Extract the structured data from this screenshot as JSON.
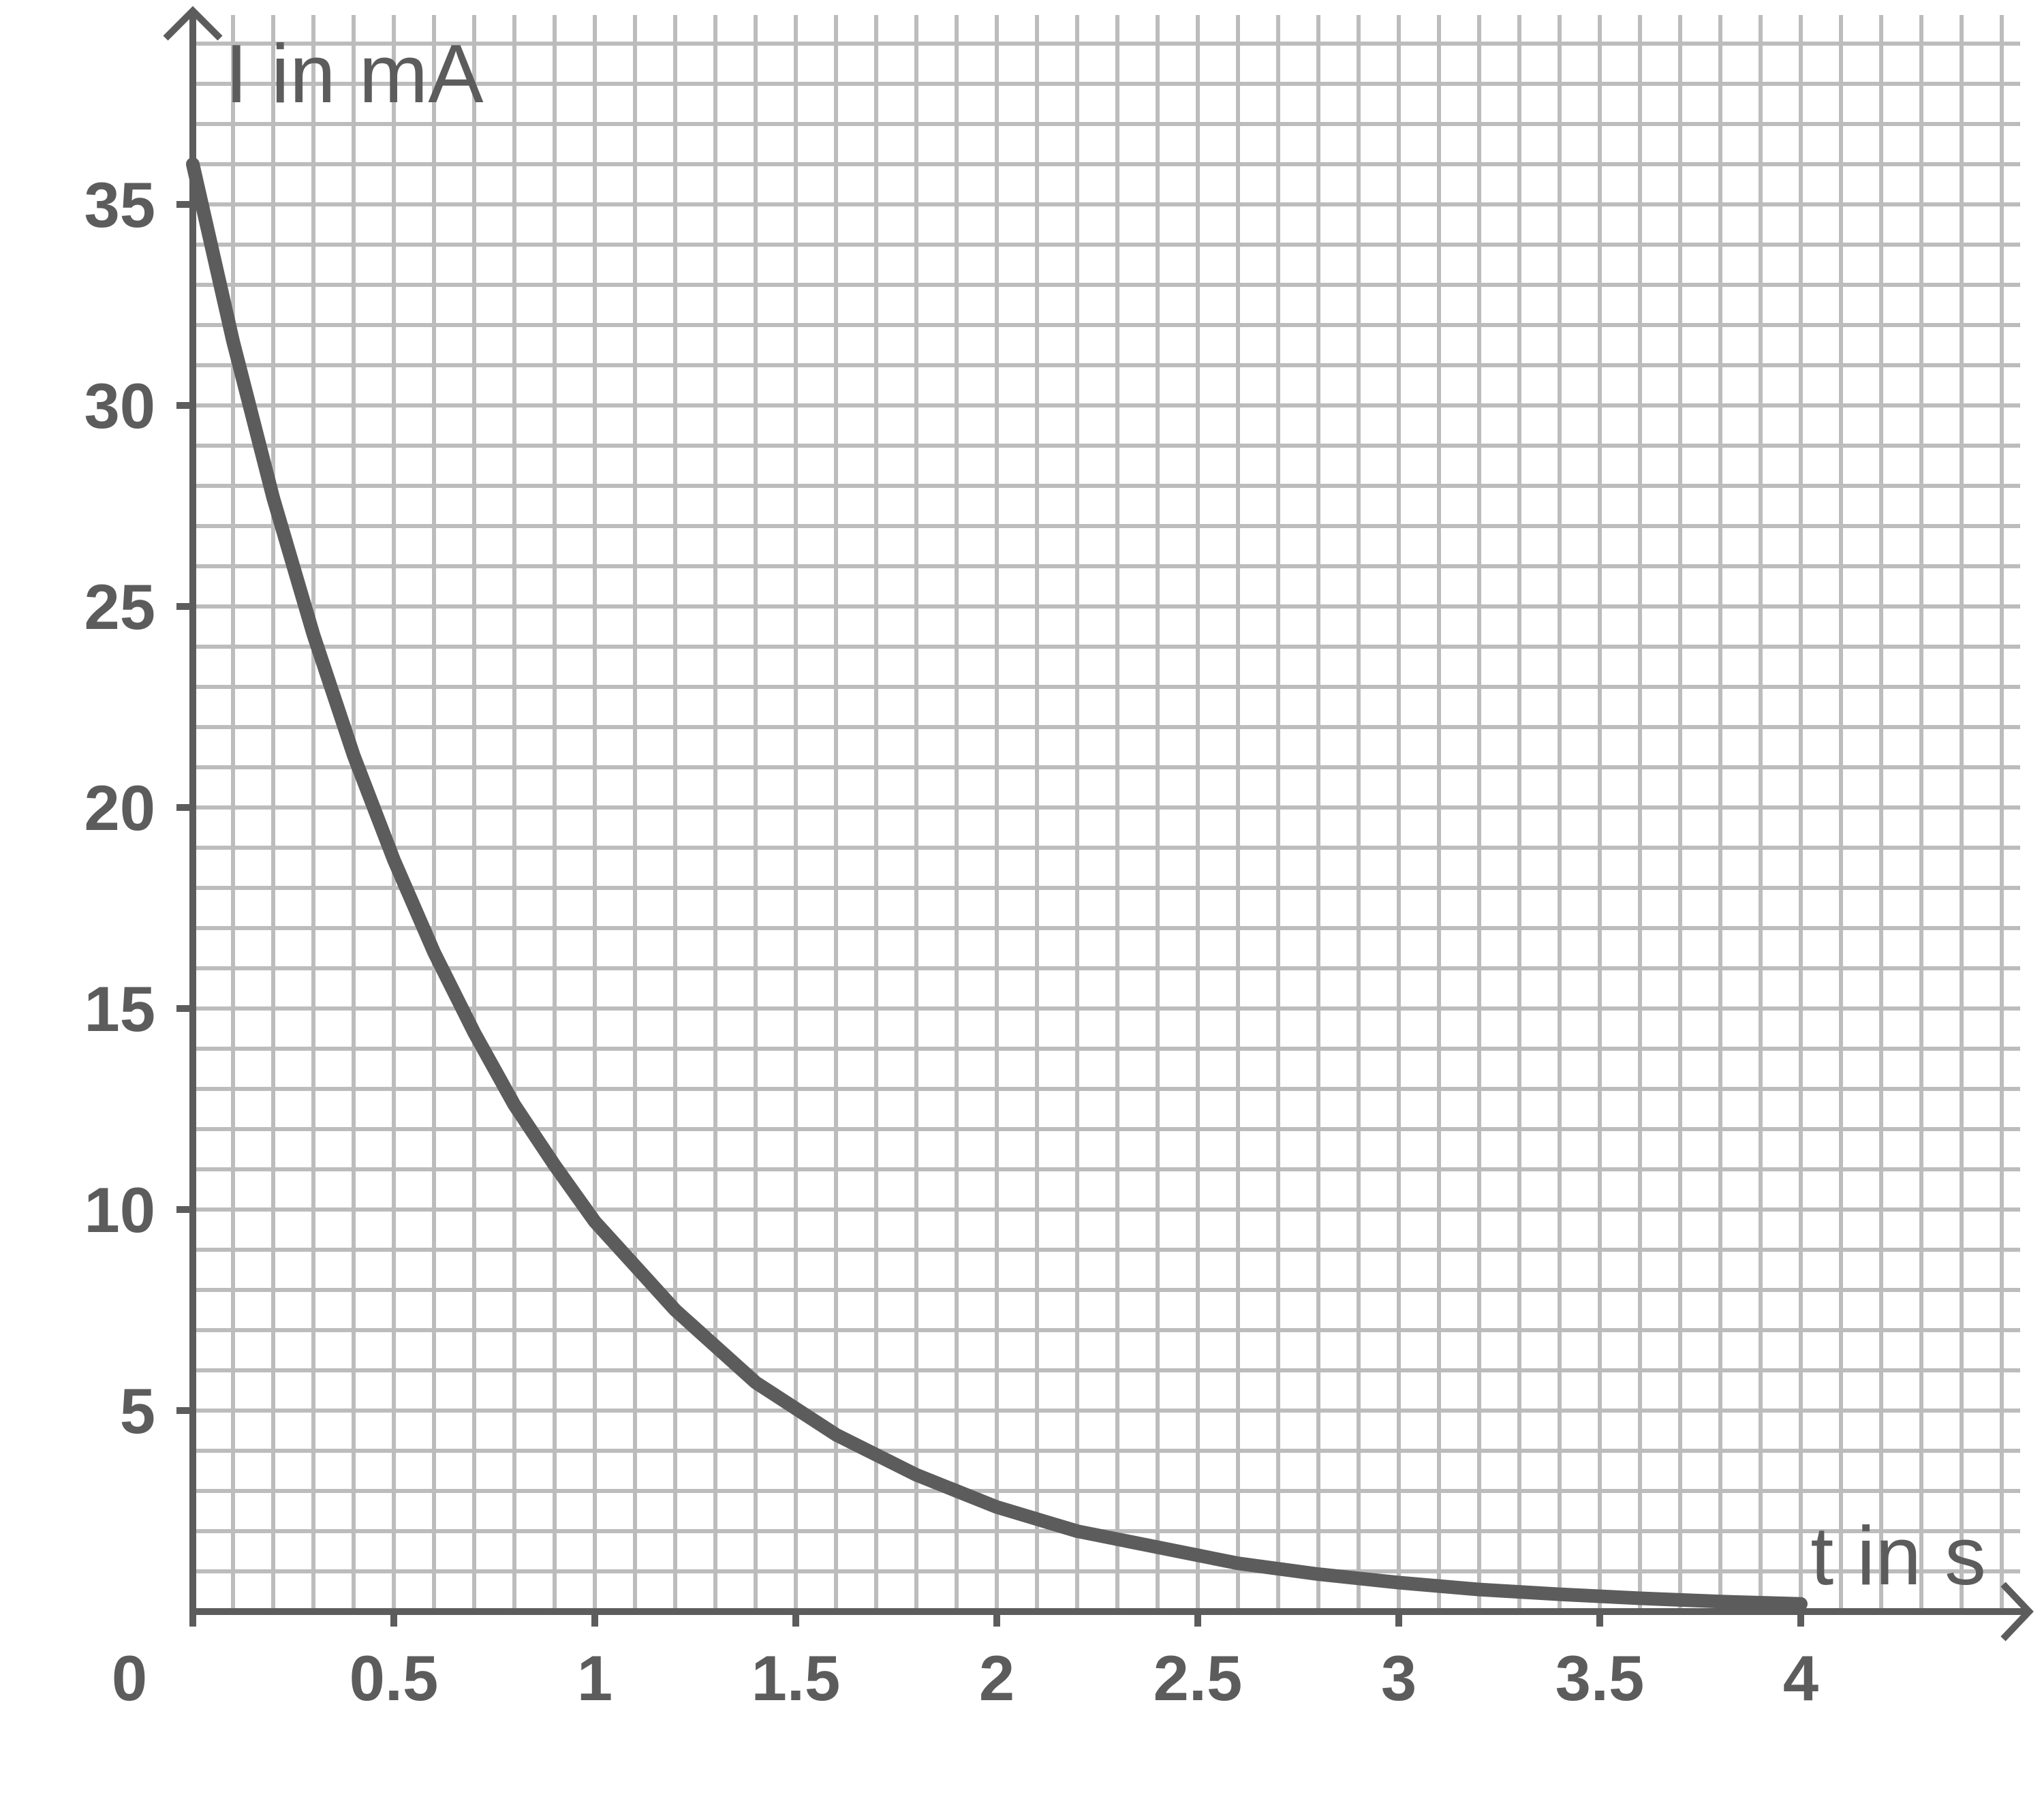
{
  "chart_data": {
    "type": "line",
    "title": "",
    "xlabel": "t in s",
    "ylabel": "I in mA",
    "xlim": [
      0,
      4.5
    ],
    "ylim": [
      0,
      38
    ],
    "x_ticks": [
      0,
      0.5,
      1,
      1.5,
      2,
      2.5,
      3,
      3.5,
      4
    ],
    "x_tick_labels": [
      "0",
      "0.5",
      "1",
      "1.5",
      "2",
      "2.5",
      "3",
      "3.5",
      "4"
    ],
    "y_ticks": [
      5,
      10,
      15,
      20,
      25,
      30,
      35
    ],
    "y_tick_labels": [
      "5",
      "10",
      "15",
      "20",
      "25",
      "30",
      "35"
    ],
    "grid": true,
    "grid_minor_step_x": 0.1,
    "grid_minor_step_y": 1,
    "series": [
      {
        "name": "",
        "x": [
          0,
          0.1,
          0.2,
          0.3,
          0.4,
          0.5,
          0.6,
          0.7,
          0.8,
          0.9,
          1.0,
          1.2,
          1.4,
          1.6,
          1.8,
          2.0,
          2.2,
          2.4,
          2.6,
          2.8,
          3.0,
          3.2,
          3.4,
          3.6,
          3.8,
          4.0
        ],
        "y": [
          36.0,
          31.6,
          27.7,
          24.3,
          21.3,
          18.7,
          16.4,
          14.4,
          12.6,
          11.1,
          9.7,
          7.5,
          5.7,
          4.4,
          3.4,
          2.6,
          2.0,
          1.6,
          1.2,
          0.93,
          0.72,
          0.55,
          0.43,
          0.33,
          0.25,
          0.19
        ]
      }
    ],
    "colors": {
      "axis": "#5c5c5c",
      "grid": "#bcbcbc",
      "curve": "#5c5c5c",
      "background": "#ffffff"
    }
  }
}
